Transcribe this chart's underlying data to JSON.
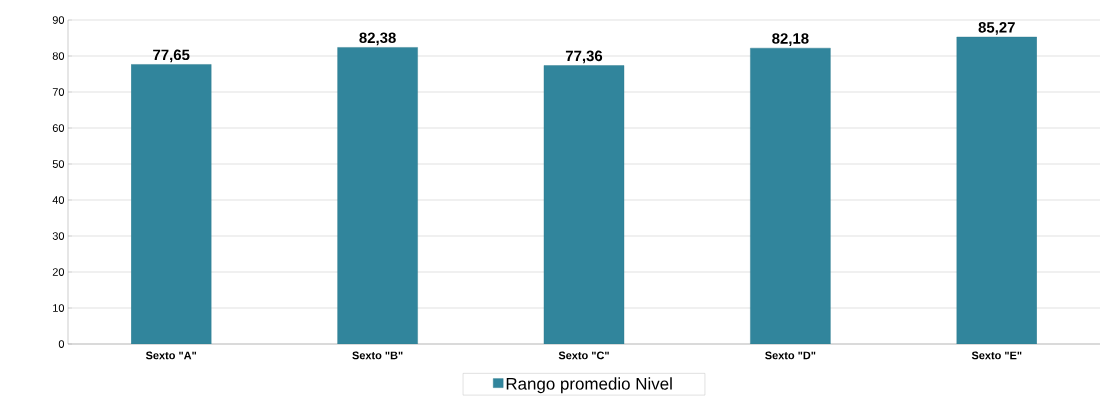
{
  "chart_data": {
    "type": "bar",
    "categories": [
      "Sexto \"A\"",
      "Sexto \"B\"",
      "Sexto \"C\"",
      "Sexto \"D\"",
      "Sexto \"E\""
    ],
    "series": [
      {
        "name": "Rango promedio Nivel",
        "color": "#31859c",
        "values": [
          77.65,
          82.38,
          77.36,
          82.18,
          85.27
        ],
        "value_labels": [
          "77,65",
          "82,38",
          "77,36",
          "82,18",
          "85,27"
        ]
      }
    ],
    "ylim": [
      0,
      90
    ],
    "yticks": [
      0,
      10,
      20,
      30,
      40,
      50,
      60,
      70,
      80,
      90
    ],
    "grid": "y",
    "legend": "bottom"
  }
}
